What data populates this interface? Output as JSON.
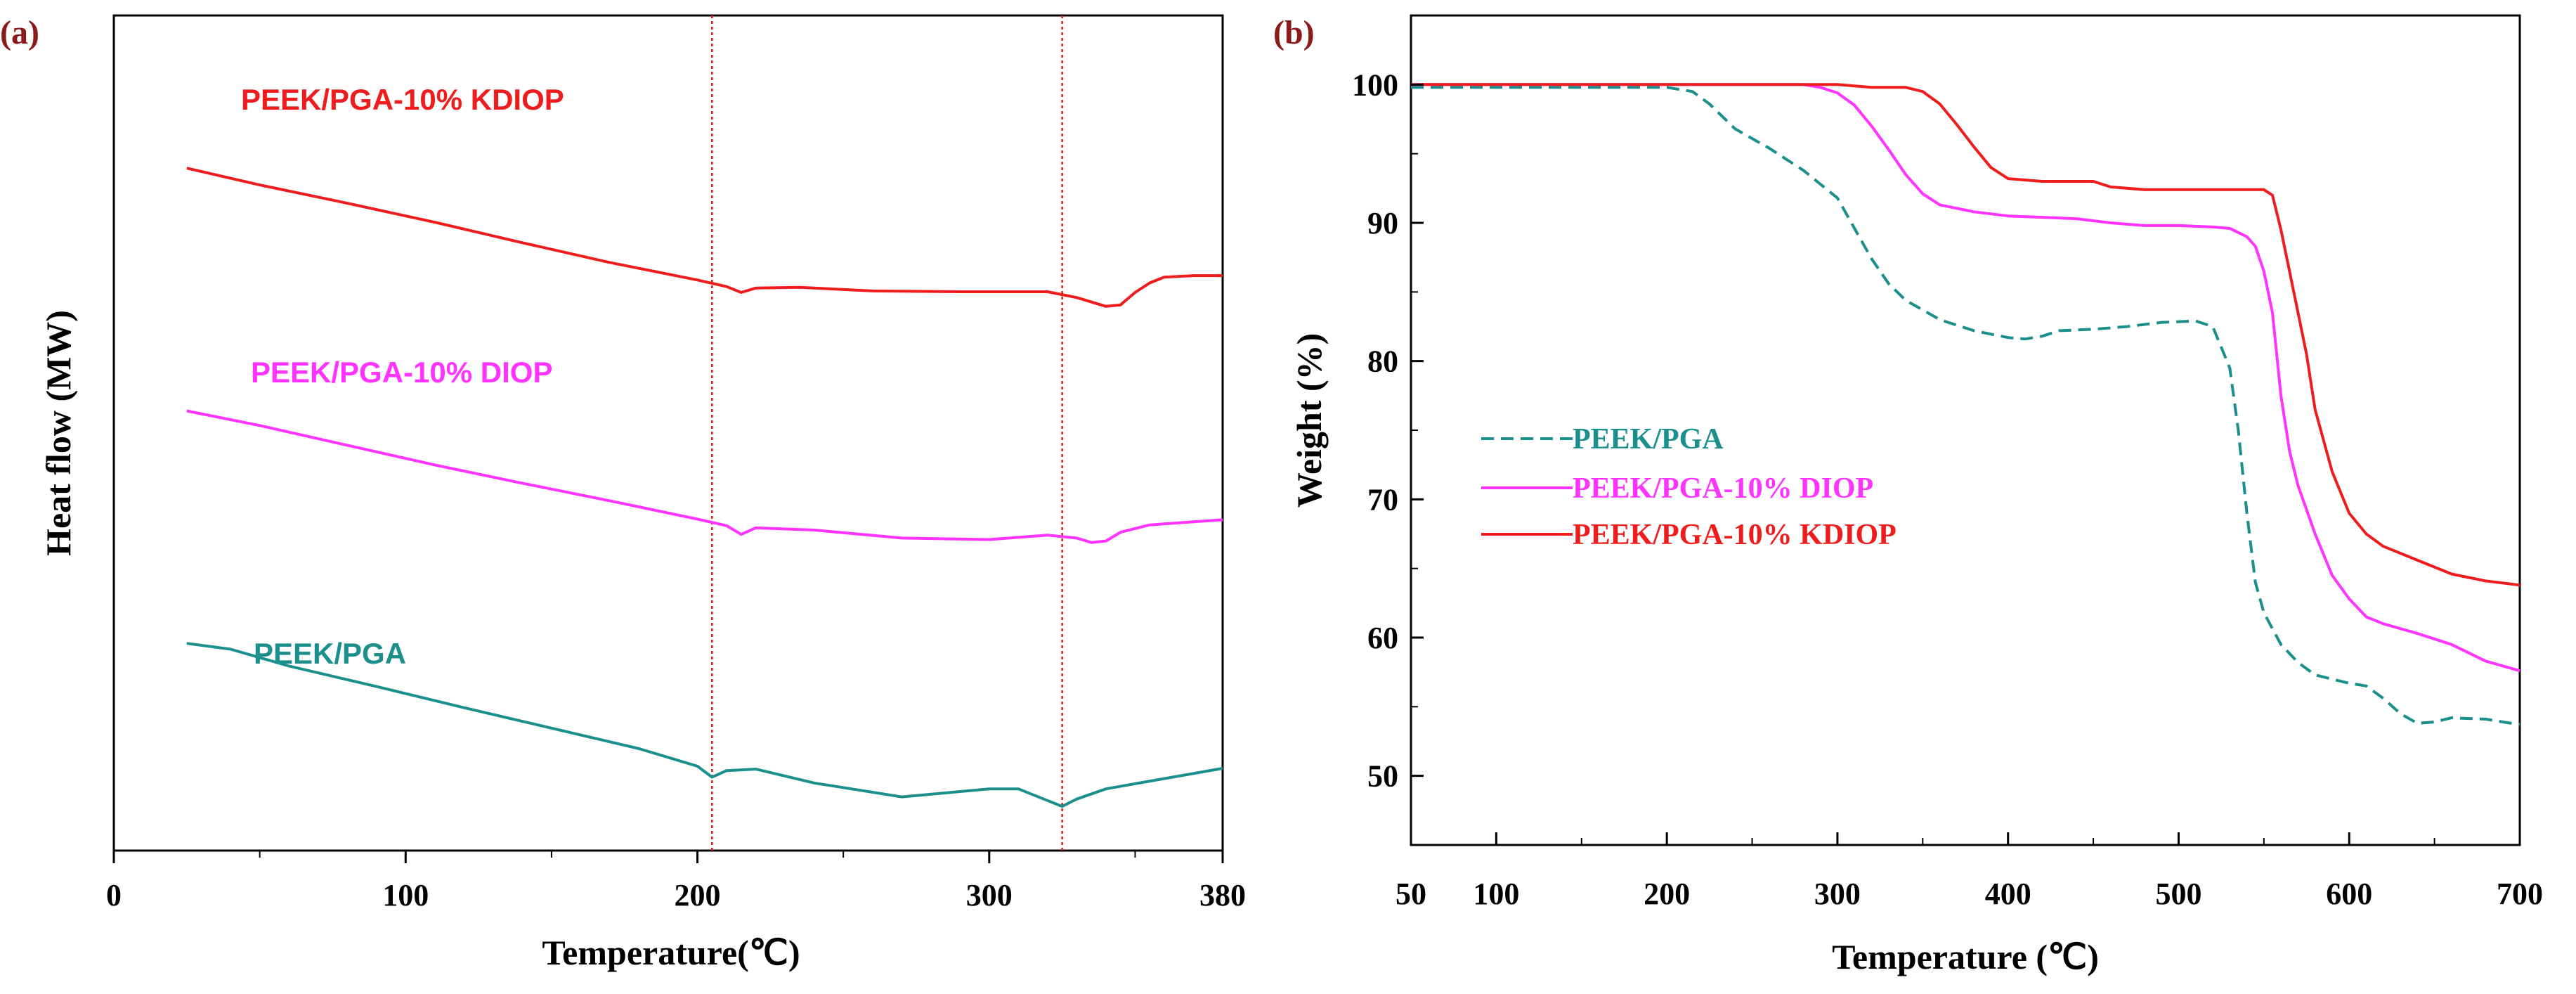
{
  "colors": {
    "kdiop": "#ee1c1c",
    "diop": "#ff33ff",
    "pga": "#1a8f8c",
    "guide": "#cc2222",
    "panel_label": "#8b1a1a"
  },
  "chart_data": [
    {
      "panel": "(a)",
      "type": "line",
      "title": "",
      "xlabel": "Temperature(℃)",
      "ylabel": "Heat flow (MW)",
      "xlim": [
        0,
        380
      ],
      "ylim": [
        0,
        100
      ],
      "xticks": [
        0,
        100,
        200,
        300,
        380
      ],
      "yticks_shown": false,
      "guide_lines_x": [
        205,
        325
      ],
      "series": [
        {
          "name": "PEEK/PGA-10% KDIOP",
          "color_key": "kdiop",
          "x": [
            25,
            50,
            80,
            110,
            140,
            170,
            200,
            210,
            215,
            220,
            235,
            260,
            290,
            320,
            330,
            340,
            345,
            350,
            355,
            360,
            370,
            380
          ],
          "y": [
            89.5,
            87.2,
            84.7,
            82.1,
            79.3,
            76.6,
            74.2,
            73.3,
            72.5,
            73.1,
            73.2,
            72.7,
            72.6,
            72.6,
            71.8,
            70.6,
            70.8,
            72.5,
            73.8,
            74.6,
            74.8,
            74.8
          ]
        },
        {
          "name": "PEEK/PGA-10% DIOP",
          "color_key": "diop",
          "x": [
            25,
            50,
            80,
            110,
            140,
            170,
            200,
            210,
            215,
            220,
            240,
            270,
            300,
            320,
            330,
            335,
            340,
            345,
            355,
            380
          ],
          "y": [
            56.3,
            54.3,
            51.6,
            48.9,
            46.4,
            44.0,
            41.5,
            40.6,
            39.4,
            40.3,
            40.0,
            38.9,
            38.7,
            39.3,
            38.9,
            38.3,
            38.5,
            39.7,
            40.7,
            41.4
          ]
        },
        {
          "name": "PEEK/PGA",
          "color_key": "pga",
          "x": [
            25,
            40,
            60,
            90,
            120,
            150,
            180,
            200,
            205,
            210,
            220,
            240,
            270,
            300,
            310,
            320,
            325,
            330,
            340,
            360,
            380
          ],
          "y": [
            24.5,
            23.7,
            21.4,
            18.6,
            15.7,
            12.9,
            10.1,
            7.7,
            6.2,
            7.1,
            7.3,
            5.4,
            3.5,
            4.6,
            4.6,
            3.0,
            2.2,
            3.2,
            4.6,
            6.0,
            7.4
          ]
        }
      ]
    },
    {
      "panel": "(b)",
      "type": "line",
      "title": "",
      "xlabel": "Temperature (℃)",
      "ylabel": "Weight (%)",
      "xlim": [
        50,
        700
      ],
      "ylim": [
        45,
        105
      ],
      "xticks": [
        50,
        100,
        200,
        300,
        400,
        500,
        600,
        700
      ],
      "yticks": [
        50,
        60,
        70,
        80,
        90,
        100
      ],
      "legend": "center-left",
      "series": [
        {
          "name": "PEEK/PGA",
          "color_key": "pga",
          "dash": "dashed",
          "x": [
            50,
            100,
            150,
            200,
            215,
            225,
            240,
            260,
            280,
            300,
            310,
            320,
            330,
            340,
            360,
            380,
            400,
            410,
            420,
            430,
            450,
            470,
            490,
            510,
            520,
            530,
            535,
            540,
            545,
            550,
            560,
            570,
            580,
            600,
            610,
            620,
            630,
            640,
            650,
            660,
            680,
            700
          ],
          "y": [
            99.8,
            99.8,
            99.8,
            99.8,
            99.5,
            98.6,
            96.8,
            95.4,
            93.8,
            91.8,
            89.6,
            87.4,
            85.6,
            84.4,
            83.0,
            82.2,
            81.7,
            81.6,
            81.8,
            82.2,
            82.3,
            82.5,
            82.8,
            82.9,
            82.5,
            79.5,
            75.0,
            69.0,
            64.0,
            61.8,
            59.5,
            58.2,
            57.3,
            56.7,
            56.5,
            55.6,
            54.5,
            53.8,
            53.9,
            54.2,
            54.1,
            53.7
          ]
        },
        {
          "name": "PEEK/PGA-10% DIOP",
          "color_key": "diop",
          "dash": "solid",
          "x": [
            50,
            100,
            200,
            280,
            290,
            300,
            310,
            320,
            330,
            340,
            350,
            360,
            380,
            400,
            420,
            440,
            460,
            480,
            500,
            520,
            530,
            540,
            545,
            550,
            555,
            560,
            565,
            570,
            580,
            590,
            600,
            610,
            620,
            640,
            660,
            680,
            700
          ],
          "y": [
            100,
            100,
            100,
            100,
            99.8,
            99.4,
            98.5,
            97.0,
            95.3,
            93.5,
            92.1,
            91.3,
            90.8,
            90.5,
            90.4,
            90.3,
            90.0,
            89.8,
            89.8,
            89.7,
            89.6,
            89.0,
            88.3,
            86.5,
            83.5,
            77.5,
            73.5,
            71.0,
            67.5,
            64.5,
            62.8,
            61.5,
            61.0,
            60.3,
            59.5,
            58.3,
            57.6
          ]
        },
        {
          "name": "PEEK/PGA-10% KDIOP",
          "color_key": "kdiop",
          "dash": "solid",
          "x": [
            50,
            100,
            200,
            300,
            310,
            320,
            330,
            340,
            350,
            360,
            370,
            380,
            390,
            400,
            420,
            440,
            450,
            460,
            480,
            500,
            520,
            540,
            550,
            555,
            560,
            565,
            570,
            575,
            580,
            590,
            600,
            610,
            620,
            640,
            660,
            680,
            700
          ],
          "y": [
            100,
            100,
            100,
            100,
            99.9,
            99.8,
            99.8,
            99.8,
            99.5,
            98.6,
            97.1,
            95.5,
            94.0,
            93.2,
            93.0,
            93.0,
            93.0,
            92.6,
            92.4,
            92.4,
            92.4,
            92.4,
            92.4,
            92.0,
            89.5,
            86.5,
            83.5,
            80.5,
            76.5,
            72.0,
            69.0,
            67.5,
            66.6,
            65.6,
            64.6,
            64.1,
            63.8
          ]
        }
      ]
    }
  ]
}
